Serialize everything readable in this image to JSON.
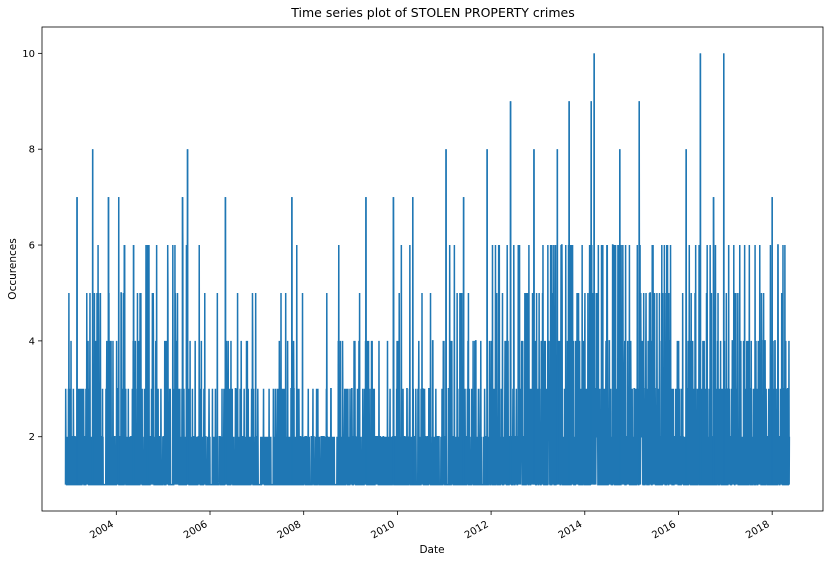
{
  "chart_data": {
    "type": "line",
    "title": "Time series plot of STOLEN PROPERTY crimes",
    "xlabel": "Date",
    "ylabel": "Occurences",
    "x_tick_labels": [
      "2004",
      "2006",
      "2008",
      "2010",
      "2012",
      "2014",
      "2016",
      "2018"
    ],
    "y_tick_labels": [
      "2",
      "4",
      "6",
      "8",
      "10"
    ],
    "y_ticks": [
      2,
      4,
      6,
      8,
      10
    ],
    "xlim": [
      "2002-06-01",
      "2019-02-01"
    ],
    "ylim": [
      0.45,
      10.55
    ],
    "date_range": [
      "2002-12-01",
      "2018-05-15"
    ],
    "grid": false,
    "legend": false,
    "line_color": "#1f77b4",
    "spike_peaks": [
      {
        "date": "2003-03-01",
        "value": 7
      },
      {
        "date": "2003-07-01",
        "value": 8
      },
      {
        "date": "2003-11-01",
        "value": 7
      },
      {
        "date": "2004-01-20",
        "value": 7
      },
      {
        "date": "2004-05-15",
        "value": 6
      },
      {
        "date": "2004-09-01",
        "value": 6
      },
      {
        "date": "2005-07-10",
        "value": 8
      },
      {
        "date": "2005-06-01",
        "value": 7
      },
      {
        "date": "2006-05-01",
        "value": 7
      },
      {
        "date": "2007-10-01",
        "value": 7
      },
      {
        "date": "2008-10-01",
        "value": 6
      },
      {
        "date": "2009-05-01",
        "value": 7
      },
      {
        "date": "2009-12-01",
        "value": 7
      },
      {
        "date": "2010-05-01",
        "value": 7
      },
      {
        "date": "2011-01-15",
        "value": 8
      },
      {
        "date": "2011-06-01",
        "value": 7
      },
      {
        "date": "2011-12-01",
        "value": 8
      },
      {
        "date": "2012-06-01",
        "value": 9
      },
      {
        "date": "2012-12-01",
        "value": 8
      },
      {
        "date": "2013-06-01",
        "value": 8
      },
      {
        "date": "2013-09-01",
        "value": 9
      },
      {
        "date": "2014-03-15",
        "value": 10
      },
      {
        "date": "2014-02-20",
        "value": 9
      },
      {
        "date": "2014-10-01",
        "value": 8
      },
      {
        "date": "2015-03-01",
        "value": 9
      },
      {
        "date": "2016-03-01",
        "value": 8
      },
      {
        "date": "2016-06-20",
        "value": 10
      },
      {
        "date": "2016-10-01",
        "value": 7
      },
      {
        "date": "2016-12-20",
        "value": 10
      },
      {
        "date": "2018-01-01",
        "value": 7
      }
    ]
  }
}
